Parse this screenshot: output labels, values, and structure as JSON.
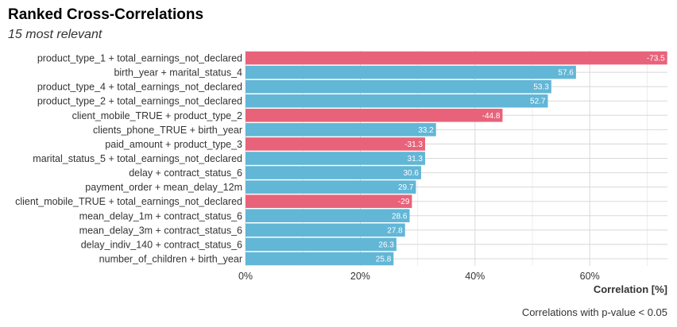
{
  "header": {
    "title": "Ranked Cross-Correlations",
    "subtitle": "15 most relevant"
  },
  "colors": {
    "positive": "#62b6d6",
    "negative": "#e8637a"
  },
  "chart_data": {
    "type": "bar",
    "orientation": "horizontal",
    "title": "Ranked Cross-Correlations",
    "subtitle": "15 most relevant",
    "xlabel": "Correlation [%]",
    "ylabel": "",
    "caption": "Correlations with p-value < 0.05",
    "xlim": [
      0,
      73.5
    ],
    "x_ticks": [
      0,
      20,
      40,
      60
    ],
    "x_tick_labels": [
      "0%",
      "20%",
      "40%",
      "60%"
    ],
    "grid": true,
    "value_basis": "absolute",
    "categories": [
      "product_type_1 + total_earnings_not_declared",
      "birth_year + marital_status_4",
      "product_type_4 + total_earnings_not_declared",
      "product_type_2 + total_earnings_not_declared",
      "client_mobile_TRUE + product_type_2",
      "clients_phone_TRUE + birth_year",
      "paid_amount + product_type_3",
      "marital_status_5 + total_earnings_not_declared",
      "delay + contract_status_6",
      "payment_order + mean_delay_12m",
      "client_mobile_TRUE + total_earnings_not_declared",
      "mean_delay_1m + contract_status_6",
      "mean_delay_3m + contract_status_6",
      "delay_indiv_140 + contract_status_6",
      "number_of_children + birth_year"
    ],
    "values": [
      -73.5,
      57.6,
      53.3,
      52.7,
      -44.8,
      33.2,
      -31.3,
      31.3,
      30.6,
      29.7,
      -29,
      28.6,
      27.8,
      26.3,
      25.8
    ],
    "data_labels": [
      "-73.5",
      "57.6",
      "53.3",
      "52.7",
      "-44.8",
      "33.2",
      "-31.3",
      "31.3",
      "30.6",
      "29.7",
      "-29",
      "28.6",
      "27.8",
      "26.3",
      "25.8"
    ]
  }
}
